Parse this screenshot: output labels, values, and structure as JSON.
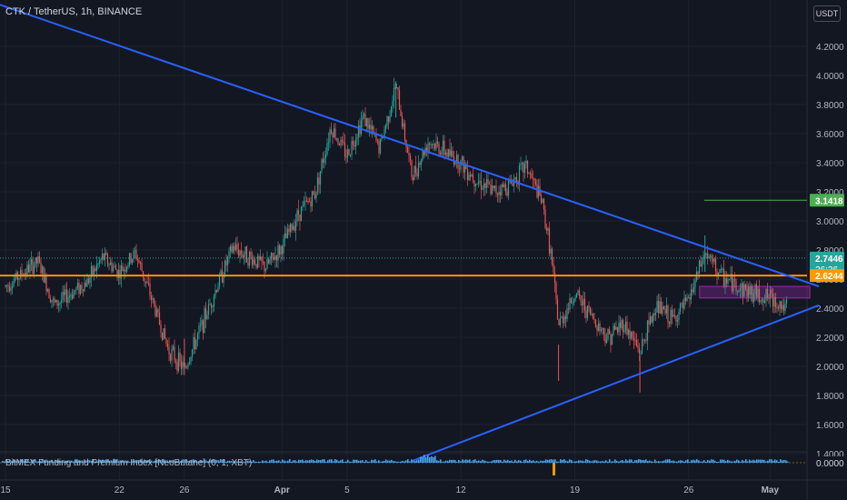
{
  "header": {
    "symbol": "CTK / TetherUS, 1h, BINANCE",
    "currency": "USDT"
  },
  "indicator": {
    "label": "BitMEX Funding and Premium Index [NeoButane] (0, 1, XBT)",
    "value": "0.0000"
  },
  "chart_data": {
    "type": "candlestick",
    "symbol": "CTK / TetherUS",
    "interval": "1h",
    "exchange": "BINANCE",
    "ylim": [
      1.4,
      4.4
    ],
    "y_ticks": [
      "4.2000",
      "4.0000",
      "3.8000",
      "3.6000",
      "3.4000",
      "3.2000",
      "3.0000",
      "2.8000",
      "2.6000",
      "2.4000",
      "2.2000",
      "2.0000",
      "1.8000",
      "1.6000",
      "1.4000"
    ],
    "x_ticks": [
      "15",
      "22",
      "26",
      "Apr",
      "5",
      "12",
      "19",
      "26",
      "May"
    ],
    "price_path": [
      [
        "Mar 15",
        2.55
      ],
      [
        "Mar 17",
        2.72
      ],
      [
        "Mar 18",
        2.42
      ],
      [
        "Mar 20",
        2.58
      ],
      [
        "Mar 21",
        2.75
      ],
      [
        "Mar 22",
        2.64
      ],
      [
        "Mar 23",
        2.78
      ],
      [
        "Mar 24",
        2.46
      ],
      [
        "Mar 25",
        2.12
      ],
      [
        "Mar 26",
        1.98
      ],
      [
        "Mar 27",
        2.26
      ],
      [
        "Mar 28",
        2.55
      ],
      [
        "Mar 29",
        2.82
      ],
      [
        "Mar 30",
        2.75
      ],
      [
        "Mar 31",
        2.68
      ],
      [
        "Apr 1",
        2.82
      ],
      [
        "Apr 2",
        3.05
      ],
      [
        "Apr 3",
        3.18
      ],
      [
        "Apr 4",
        3.65
      ],
      [
        "Apr 5",
        3.45
      ],
      [
        "Apr 6",
        3.72
      ],
      [
        "Apr 7",
        3.5
      ],
      [
        "Apr 8",
        3.93
      ],
      [
        "Apr 9",
        3.3
      ],
      [
        "Apr 10",
        3.55
      ],
      [
        "Apr 11",
        3.48
      ],
      [
        "Apr 12",
        3.4
      ],
      [
        "Apr 13",
        3.28
      ],
      [
        "Apr 14",
        3.2
      ],
      [
        "Apr 15",
        3.25
      ],
      [
        "Apr 16",
        3.38
      ],
      [
        "Apr 17",
        3.12
      ],
      [
        "Apr 17.5",
        2.8
      ],
      [
        "Apr 18",
        2.28
      ],
      [
        "Apr 19",
        2.5
      ],
      [
        "Apr 20",
        2.35
      ],
      [
        "Apr 21",
        2.2
      ],
      [
        "Apr 22",
        2.3
      ],
      [
        "Apr 23",
        2.1
      ],
      [
        "Apr 24",
        2.42
      ],
      [
        "Apr 25",
        2.32
      ],
      [
        "Apr 26",
        2.45
      ],
      [
        "Apr 27",
        2.78
      ],
      [
        "Apr 28",
        2.62
      ],
      [
        "Apr 29",
        2.55
      ],
      [
        "Apr 30",
        2.5
      ],
      [
        "May 1",
        2.47
      ],
      [
        "May 2",
        2.4
      ],
      [
        "May 3",
        2.74
      ]
    ],
    "lows": [
      [
        "Mar 26",
        1.94
      ],
      [
        "Apr 18",
        1.9
      ],
      [
        "Apr 23",
        1.82
      ]
    ],
    "highs": [
      [
        "Apr 8",
        3.96
      ],
      [
        "Apr 27",
        2.9
      ]
    ],
    "trendlines": [
      {
        "name": "descending resistance",
        "from": [
          "Mar 13",
          4.55
        ],
        "to": [
          "May 4",
          2.55
        ]
      },
      {
        "name": "ascending support",
        "from": [
          "Apr 9",
          1.35
        ],
        "to": [
          "May 4",
          2.42
        ]
      }
    ],
    "horizontal_levels": [
      {
        "value": 2.6244,
        "color": "#ff9800"
      },
      {
        "value": 3.1418,
        "color": "#4caf50"
      }
    ],
    "price_labels": [
      {
        "value": 3.1418,
        "text": "3.1418",
        "color": "#4caf50"
      },
      {
        "value": 2.7446,
        "text": "2.7446",
        "sub": "26:36",
        "color": "#26a69a"
      },
      {
        "value": 2.6244,
        "text": "2.6244",
        "color": "#ff9800"
      }
    ],
    "box": {
      "from": "Apr 27",
      "to": "May 3",
      "top": 2.55,
      "bottom": 2.47,
      "color": "#9c27b0"
    },
    "indicator_value": "0.0000"
  }
}
